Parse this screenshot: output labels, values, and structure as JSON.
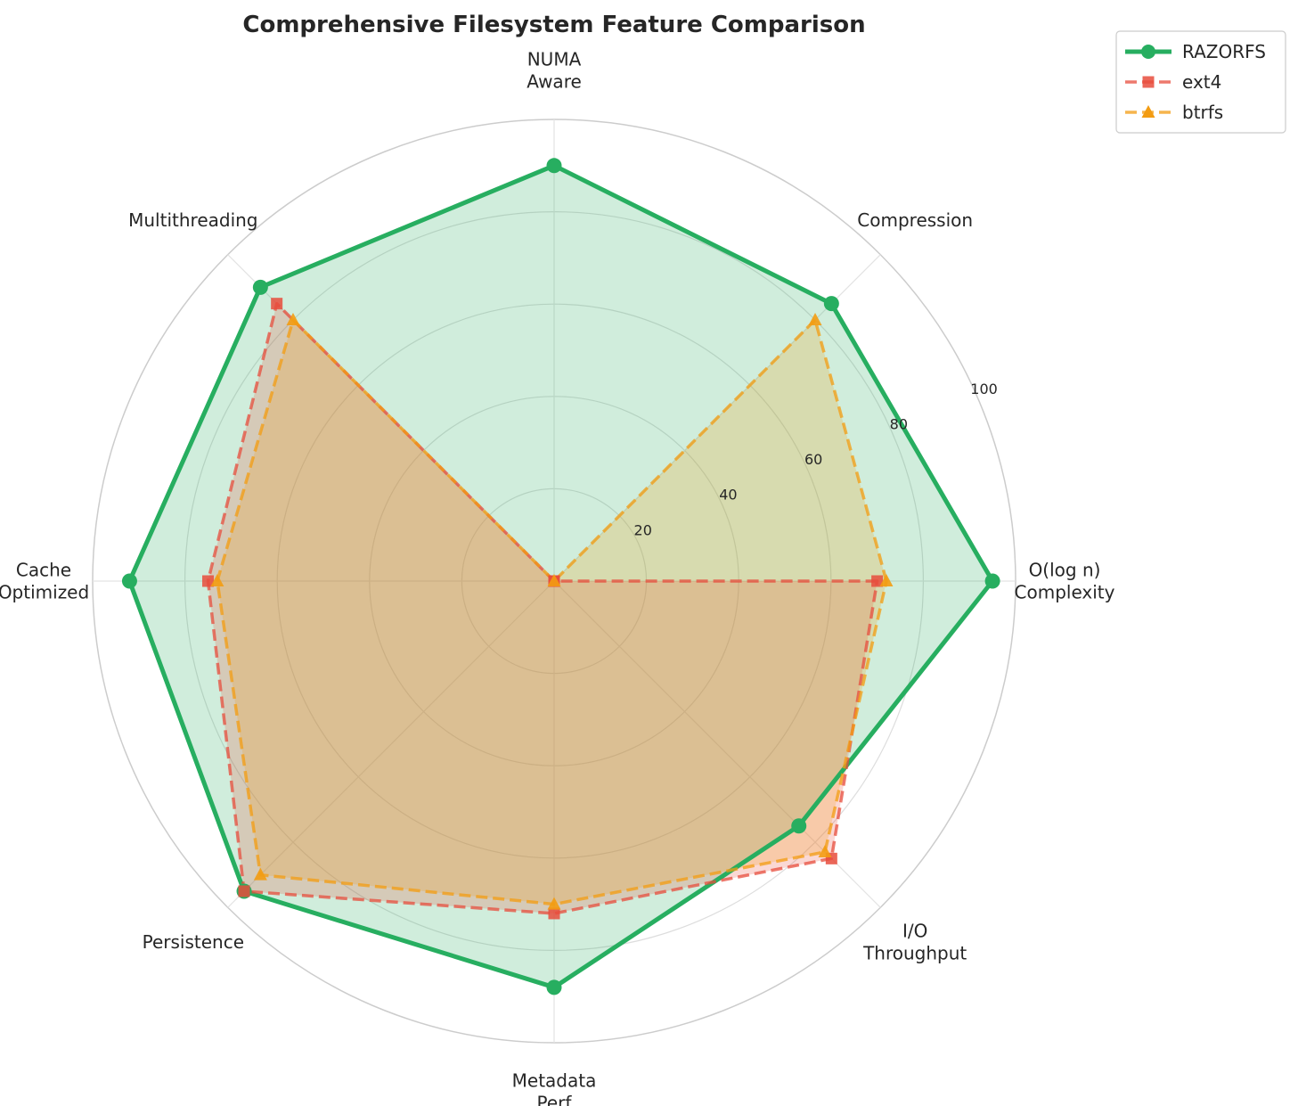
{
  "chart_data": {
    "type": "radar",
    "title": "Comprehensive Filesystem Feature Comparison",
    "categories": [
      [
        "O(log n)",
        "Complexity"
      ],
      [
        "Compression"
      ],
      [
        "NUMA",
        "Aware"
      ],
      [
        "Multithreading"
      ],
      [
        "Cache",
        "Optimized"
      ],
      [
        "Persistence"
      ],
      [
        "Metadata",
        "Perf"
      ],
      [
        "I/O",
        "Throughput"
      ]
    ],
    "rticks": [
      20,
      40,
      60,
      80,
      100
    ],
    "rlim": [
      0,
      100
    ],
    "grid": true,
    "legend_position": "top-right outside",
    "series": [
      {
        "name": "RAZORFS",
        "values": [
          95,
          85,
          90,
          90,
          92,
          95,
          88,
          75
        ],
        "color": "#27ae60",
        "linestyle": "solid",
        "marker": "circle"
      },
      {
        "name": "ext4",
        "values": [
          70,
          0,
          0,
          85,
          75,
          95,
          72,
          85
        ],
        "color": "#e74c3c",
        "linestyle": "dashed",
        "marker": "square"
      },
      {
        "name": "btrfs",
        "values": [
          72,
          80,
          0,
          80,
          73,
          90,
          70,
          83
        ],
        "color": "#f39c12",
        "linestyle": "dashed",
        "marker": "triangle"
      }
    ]
  }
}
